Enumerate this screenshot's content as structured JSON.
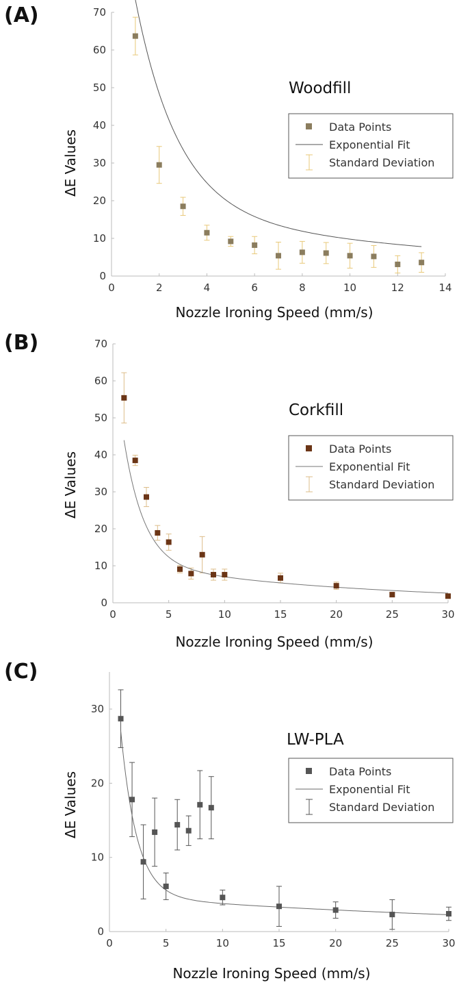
{
  "chart_data": [
    {
      "type": "scatter",
      "panel_label": "(A)",
      "title": "Woodfill",
      "xlabel": "Nozzle Ironing Speed (mm/s)",
      "ylabel": "ΔE Values",
      "xlim": [
        0,
        14
      ],
      "ylim": [
        0,
        70
      ],
      "xticks": [
        0,
        2,
        4,
        6,
        8,
        10,
        12,
        14
      ],
      "yticks": [
        0,
        10,
        20,
        30,
        40,
        50,
        60,
        70
      ],
      "legend_position": "right",
      "colors": {
        "points": "#8b7d5e",
        "fit": "#555555",
        "error": "#e8c878"
      },
      "legend": [
        "Data Points",
        "Exponential Fit",
        "Standard Deviation"
      ],
      "series": [
        {
          "name": "Data Points",
          "x": [
            1,
            2,
            3,
            4,
            5,
            6,
            7,
            8,
            9,
            10,
            11,
            12,
            13
          ],
          "y": [
            63.7,
            29.5,
            18.5,
            11.5,
            9.2,
            8.2,
            5.4,
            6.3,
            6.1,
            5.4,
            5.2,
            3.1,
            3.6
          ],
          "err": [
            5.0,
            4.9,
            2.4,
            2.0,
            1.3,
            2.3,
            3.6,
            2.9,
            2.8,
            3.3,
            2.9,
            2.3,
            2.6
          ]
        },
        {
          "name": "Exponential Fit",
          "fit": {
            "a": 98,
            "b": 0.55,
            "c": 18,
            "d": 0.065
          }
        }
      ]
    },
    {
      "type": "scatter",
      "panel_label": "(B)",
      "title": "Corkfill",
      "xlabel": "Nozzle Ironing Speed (mm/s)",
      "ylabel": "ΔE Values",
      "xlim": [
        0,
        30
      ],
      "ylim": [
        0,
        70
      ],
      "xticks": [
        0,
        5,
        10,
        15,
        20,
        25,
        30
      ],
      "yticks": [
        0,
        10,
        20,
        30,
        40,
        50,
        60,
        70
      ],
      "legend_position": "right",
      "colors": {
        "points": "#6b3516",
        "fit": "#777777",
        "error": "#dcbc88"
      },
      "legend": [
        "Data Points",
        "Exponential Fit",
        "Standard Deviation"
      ],
      "series": [
        {
          "name": "Data Points",
          "x": [
            1,
            2,
            3,
            4,
            5,
            6,
            7,
            8,
            9,
            10,
            15,
            20,
            25,
            30
          ],
          "y": [
            55.4,
            38.5,
            28.6,
            18.9,
            16.4,
            9.1,
            7.9,
            13.0,
            7.6,
            7.6,
            6.7,
            4.6,
            2.2,
            1.8
          ],
          "err": [
            6.8,
            1.4,
            2.6,
            2.0,
            2.2,
            1.0,
            1.5,
            4.9,
            1.5,
            1.5,
            1.3,
            1.0,
            0.6,
            0.6
          ]
        },
        {
          "name": "Exponential Fit",
          "fit": {
            "a": 58,
            "b": 0.55,
            "c": 11,
            "d": 0.048
          }
        }
      ]
    },
    {
      "type": "scatter",
      "panel_label": "(C)",
      "title": "LW-PLA",
      "xlabel": "Nozzle Ironing Speed (mm/s)",
      "ylabel": "ΔE Values",
      "xlim": [
        0,
        30
      ],
      "ylim": [
        0,
        35
      ],
      "xticks": [
        0,
        5,
        10,
        15,
        20,
        25,
        30
      ],
      "yticks": [
        0,
        10,
        20,
        30
      ],
      "legend_position": "right",
      "colors": {
        "points": "#555555",
        "fit": "#6a6a6a",
        "error": "#555555"
      },
      "legend": [
        "Data Points",
        "Exponential Fit",
        "Standard Deviation"
      ],
      "series": [
        {
          "name": "Data Points",
          "x": [
            1,
            2,
            3,
            4,
            5,
            6,
            7,
            8,
            9,
            10,
            15,
            20,
            25,
            30
          ],
          "y": [
            28.7,
            17.8,
            9.4,
            13.4,
            6.1,
            14.4,
            13.6,
            17.1,
            16.7,
            4.6,
            3.4,
            2.9,
            2.3,
            2.4
          ],
          "err": [
            3.9,
            5.0,
            5.0,
            4.6,
            1.8,
            3.4,
            2.0,
            4.6,
            4.2,
            1.0,
            2.7,
            1.1,
            2.0,
            0.9
          ]
        },
        {
          "name": "Exponential Fit",
          "fit": {
            "a": 45,
            "b": 0.7,
            "c": 4.8,
            "d": 0.025
          }
        }
      ]
    }
  ]
}
